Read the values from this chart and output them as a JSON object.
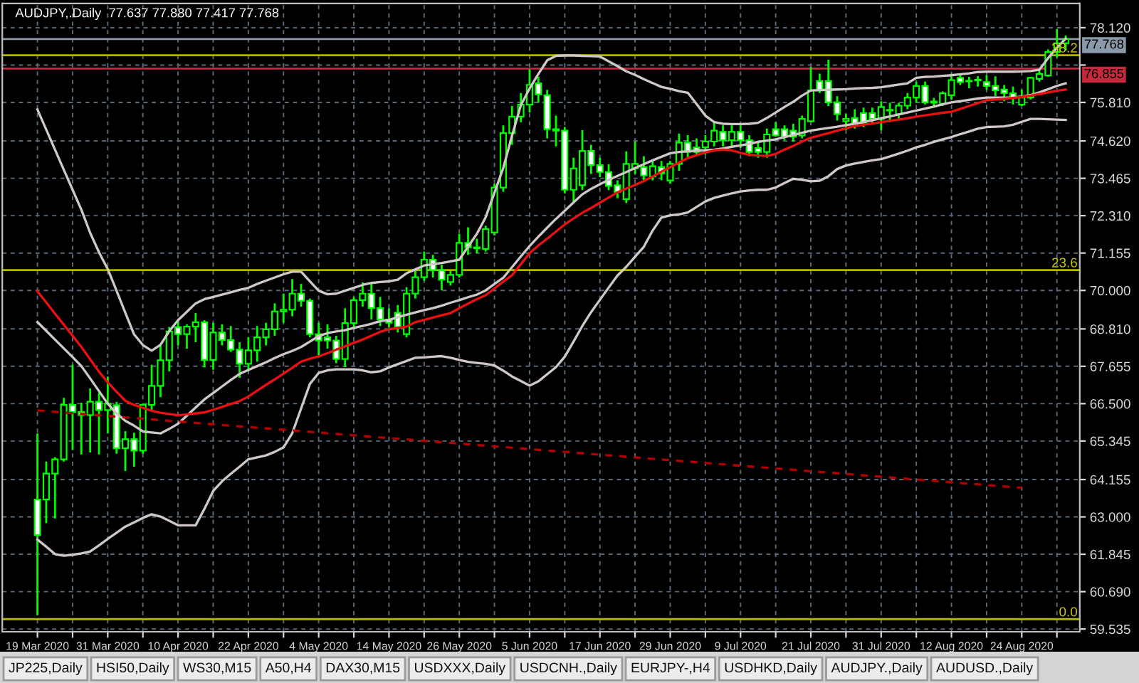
{
  "chart_data": {
    "type": "candlestick",
    "title": "AUDJPY,.Daily  77.637 77.880 77.417 77.768",
    "categories": [
      "19 Mar 2020",
      null,
      null,
      null,
      null,
      null,
      null,
      null,
      "31 Mar 2020",
      null,
      null,
      null,
      null,
      null,
      null,
      null,
      "10 Apr 2020",
      null,
      null,
      null,
      null,
      null,
      null,
      null,
      "22 Apr 2020",
      null,
      null,
      null,
      null,
      null,
      null,
      null,
      "4 May 2020",
      null,
      null,
      null,
      null,
      null,
      null,
      null,
      "14 May 2020",
      null,
      null,
      null,
      null,
      null,
      null,
      null,
      "26 May 2020",
      null,
      null,
      null,
      null,
      null,
      null,
      null,
      "5 Jun 2020",
      null,
      null,
      null,
      null,
      null,
      null,
      null,
      "17 Jun 2020",
      null,
      null,
      null,
      null,
      null,
      null,
      null,
      "29 Jun 2020",
      null,
      null,
      null,
      null,
      null,
      null,
      null,
      "9 Jul 2020",
      null,
      null,
      null,
      null,
      null,
      null,
      null,
      "21 Jul 2020",
      null,
      null,
      null,
      null,
      null,
      null,
      null,
      "31 Jul 2020",
      null,
      null,
      null,
      null,
      null,
      null,
      null,
      "12 Aug 2020",
      null,
      null,
      null,
      null,
      null,
      null,
      null,
      "24 Aug 2020",
      null,
      null,
      null,
      null,
      null
    ],
    "color": "#00ff00",
    "ohlc": [
      [
        63.54,
        65.58,
        59.96,
        62.44
      ],
      [
        63.54,
        64.71,
        62.81,
        64.34
      ],
      [
        64.34,
        64.85,
        62.95,
        64.78
      ],
      [
        64.78,
        66.68,
        64.71,
        66.46
      ],
      [
        66.46,
        67.7,
        65.07,
        66.24
      ],
      [
        66.24,
        66.53,
        64.93,
        66.15
      ],
      [
        66.15,
        66.97,
        64.99,
        66.56
      ],
      [
        66.56,
        66.83,
        64.93,
        66.3
      ],
      [
        66.3,
        67.34,
        65.58,
        66.5
      ],
      [
        66.45,
        66.55,
        64.95,
        65.12
      ],
      [
        65.12,
        65.65,
        64.42,
        65.4
      ],
      [
        65.4,
        65.6,
        64.55,
        65.05
      ],
      [
        65.05,
        66.5,
        64.95,
        66.46
      ],
      [
        66.46,
        67.7,
        66.3,
        67.05
      ],
      [
        67.05,
        68.3,
        66.7,
        67.84
      ],
      [
        67.84,
        68.87,
        67.5,
        68.73
      ],
      [
        68.87,
        69.1,
        68.3,
        68.65
      ],
      [
        68.65,
        68.95,
        68.2,
        68.88
      ],
      [
        68.88,
        69.3,
        68.4,
        69.02
      ],
      [
        69.02,
        69.08,
        67.62,
        67.85
      ],
      [
        67.85,
        69.0,
        67.55,
        68.7
      ],
      [
        68.7,
        68.95,
        68.3,
        68.47
      ],
      [
        68.47,
        68.9,
        68.1,
        68.17
      ],
      [
        68.17,
        68.4,
        67.3,
        67.73
      ],
      [
        67.73,
        68.55,
        67.5,
        68.15
      ],
      [
        68.15,
        68.9,
        67.8,
        68.55
      ],
      [
        68.55,
        69.0,
        68.3,
        68.8
      ],
      [
        68.8,
        69.6,
        68.6,
        69.35
      ],
      [
        69.35,
        69.9,
        69.0,
        69.4
      ],
      [
        69.4,
        70.35,
        69.2,
        69.9
      ],
      [
        69.9,
        70.2,
        69.5,
        69.68
      ],
      [
        69.68,
        69.75,
        68.55,
        68.65
      ],
      [
        68.65,
        69.0,
        68.0,
        68.45
      ],
      [
        68.55,
        68.95,
        68.2,
        68.45
      ],
      [
        68.45,
        68.6,
        67.75,
        67.88
      ],
      [
        67.88,
        69.45,
        67.63,
        68.99
      ],
      [
        68.99,
        69.8,
        68.8,
        69.7
      ],
      [
        69.7,
        70.25,
        69.5,
        69.9
      ],
      [
        69.9,
        70.25,
        69.1,
        69.45
      ],
      [
        69.45,
        69.8,
        68.9,
        69.1
      ],
      [
        69.1,
        69.45,
        68.85,
        69.0
      ],
      [
        69.31,
        69.55,
        68.7,
        68.87
      ],
      [
        68.65,
        70.1,
        68.55,
        69.9
      ],
      [
        69.9,
        70.65,
        69.75,
        70.41
      ],
      [
        70.41,
        71.2,
        70.3,
        70.95
      ],
      [
        70.95,
        71.1,
        70.4,
        70.63
      ],
      [
        70.63,
        70.8,
        70.0,
        70.33
      ],
      [
        70.26,
        70.6,
        70.15,
        70.48
      ],
      [
        70.48,
        71.75,
        70.4,
        71.47
      ],
      [
        71.47,
        71.95,
        71.1,
        71.33
      ],
      [
        71.33,
        71.6,
        71.15,
        71.3
      ],
      [
        71.28,
        72.0,
        71.2,
        71.9
      ],
      [
        71.79,
        73.3,
        71.7,
        73.18
      ],
      [
        73.18,
        75.1,
        73.05,
        74.86
      ],
      [
        74.86,
        75.7,
        74.5,
        75.37
      ],
      [
        75.37,
        76.1,
        75.2,
        75.74
      ],
      [
        75.74,
        76.83,
        75.5,
        76.35
      ],
      [
        76.4,
        76.6,
        75.8,
        76.06
      ],
      [
        76.03,
        76.2,
        74.7,
        74.98
      ],
      [
        74.98,
        75.4,
        74.45,
        74.94
      ],
      [
        74.94,
        75.05,
        73.0,
        73.11
      ],
      [
        73.11,
        74.1,
        72.75,
        73.77
      ],
      [
        73.25,
        74.95,
        73.1,
        74.31
      ],
      [
        74.31,
        74.5,
        73.6,
        73.87
      ],
      [
        73.87,
        74.1,
        73.5,
        73.66
      ],
      [
        73.66,
        73.9,
        73.1,
        73.23
      ],
      [
        73.25,
        73.4,
        72.85,
        73.04
      ],
      [
        72.82,
        74.3,
        72.7,
        73.91
      ],
      [
        73.77,
        74.6,
        73.6,
        73.91
      ],
      [
        73.81,
        74.15,
        73.4,
        73.55
      ],
      [
        73.52,
        74.05,
        73.4,
        73.84
      ],
      [
        73.81,
        74.0,
        73.4,
        73.62
      ],
      [
        73.4,
        74.0,
        73.3,
        73.91
      ],
      [
        73.91,
        74.85,
        73.7,
        74.57
      ],
      [
        74.57,
        74.8,
        74.1,
        74.28
      ],
      [
        74.42,
        74.7,
        74.2,
        74.28
      ],
      [
        74.42,
        74.8,
        74.2,
        74.6
      ],
      [
        74.6,
        75.2,
        74.45,
        74.94
      ],
      [
        74.9,
        75.1,
        74.45,
        74.64
      ],
      [
        74.64,
        75.1,
        74.4,
        74.9
      ],
      [
        74.9,
        75.1,
        74.4,
        74.64
      ],
      [
        74.64,
        74.8,
        74.15,
        74.28
      ],
      [
        74.4,
        74.6,
        74.1,
        74.28
      ],
      [
        74.28,
        75.0,
        74.1,
        74.82
      ],
      [
        74.98,
        75.2,
        74.75,
        74.79
      ],
      [
        74.98,
        75.1,
        74.65,
        74.75
      ],
      [
        74.94,
        75.15,
        74.6,
        74.75
      ],
      [
        74.79,
        75.4,
        74.7,
        75.3
      ],
      [
        75.23,
        76.91,
        75.2,
        76.18
      ],
      [
        76.47,
        76.7,
        76.1,
        76.18
      ],
      [
        76.47,
        77.13,
        75.7,
        75.81
      ],
      [
        75.81,
        76.0,
        75.25,
        75.45
      ],
      [
        75.23,
        75.45,
        74.95,
        75.3
      ],
      [
        75.33,
        75.6,
        75.0,
        75.15
      ],
      [
        75.48,
        75.65,
        75.05,
        75.18
      ],
      [
        75.48,
        75.65,
        75.15,
        75.3
      ],
      [
        75.3,
        75.85,
        74.95,
        75.67
      ],
      [
        75.56,
        75.8,
        75.2,
        75.56
      ],
      [
        75.45,
        75.8,
        75.3,
        75.71
      ],
      [
        75.71,
        76.1,
        75.6,
        75.96
      ],
      [
        75.96,
        76.45,
        75.8,
        76.32
      ],
      [
        76.32,
        76.45,
        75.75,
        75.81
      ],
      [
        75.8,
        75.95,
        75.65,
        75.84
      ],
      [
        75.77,
        76.15,
        75.7,
        76.09
      ],
      [
        76.03,
        76.7,
        75.9,
        76.5
      ],
      [
        76.57,
        76.7,
        76.35,
        76.44
      ],
      [
        76.47,
        76.6,
        76.25,
        76.46
      ],
      [
        76.5,
        76.62,
        76.3,
        76.49
      ],
      [
        76.44,
        76.65,
        76.2,
        76.32
      ],
      [
        76.32,
        76.62,
        76.0,
        76.18
      ],
      [
        76.21,
        76.35,
        75.85,
        76.1
      ],
      [
        76.09,
        76.3,
        75.75,
        75.96
      ],
      [
        75.74,
        76.2,
        75.7,
        75.96
      ],
      [
        75.96,
        76.6,
        75.9,
        76.57
      ],
      [
        76.54,
        76.8,
        76.45,
        76.69
      ],
      [
        76.64,
        77.45,
        76.6,
        77.37
      ],
      [
        77.37,
        78.08,
        77.2,
        77.64
      ],
      [
        77.637,
        77.88,
        77.417,
        77.768
      ]
    ],
    "series": [
      {
        "type": "line",
        "color": "#d0c8c8",
        "line_style": "solid",
        "values": [
          75.59,
          74.97,
          74.35,
          73.73,
          73.11,
          72.49,
          71.78,
          71.18,
          70.66,
          69.99,
          69.31,
          68.64,
          68.31,
          68.14,
          68.32,
          68.74,
          69.08,
          69.34,
          69.6,
          69.73,
          69.8,
          69.87,
          69.94,
          70.02,
          70.08,
          70.2,
          70.3,
          70.4,
          70.5,
          70.58,
          70.58,
          70.28,
          69.99,
          69.88,
          69.9,
          69.99,
          70.08,
          70.17,
          70.23,
          70.26,
          70.28,
          70.33,
          70.53,
          70.65,
          70.77,
          70.81,
          70.85,
          70.9,
          70.95,
          71.35,
          71.75,
          72.26,
          73.02,
          73.78,
          74.78,
          75.72,
          76.24,
          76.69,
          77.11,
          77.25,
          77.26,
          77.26,
          77.25,
          77.24,
          77.23,
          77.08,
          76.93,
          76.77,
          76.66,
          76.53,
          76.41,
          76.29,
          76.23,
          76.16,
          76.11,
          75.76,
          75.4,
          75.2,
          75.15,
          75.14,
          75.14,
          75.15,
          75.18,
          75.33,
          75.5,
          75.67,
          75.83,
          76.02,
          76.18,
          76.19,
          76.2,
          76.21,
          76.22,
          76.24,
          76.25,
          76.26,
          76.28,
          76.32,
          76.36,
          76.4,
          76.57,
          76.6,
          76.61,
          76.63,
          76.65,
          76.68,
          76.71,
          76.75,
          76.76,
          76.76,
          76.76,
          76.76,
          76.77,
          76.78,
          76.82,
          77.18,
          77.5,
          77.78
        ]
      },
      {
        "type": "line",
        "color": "#d0c8c8",
        "line_style": "solid",
        "values": [
          69.02,
          68.75,
          68.48,
          68.21,
          67.94,
          67.66,
          67.28,
          66.89,
          66.5,
          66.2,
          65.97,
          65.82,
          65.64,
          65.61,
          65.58,
          65.72,
          65.88,
          66.13,
          66.38,
          66.63,
          66.83,
          67.03,
          67.23,
          67.42,
          67.54,
          67.66,
          67.78,
          67.91,
          68.03,
          68.13,
          68.25,
          68.42,
          68.59,
          68.68,
          68.73,
          68.77,
          68.84,
          68.9,
          68.97,
          69.05,
          69.09,
          69.17,
          69.25,
          69.32,
          69.39,
          69.45,
          69.53,
          69.62,
          69.7,
          69.79,
          69.87,
          70.0,
          70.2,
          70.39,
          70.72,
          71.05,
          71.37,
          71.66,
          71.94,
          72.21,
          72.46,
          72.72,
          72.97,
          73.14,
          73.28,
          73.42,
          73.54,
          73.66,
          73.78,
          73.9,
          74.02,
          74.13,
          74.24,
          74.28,
          74.3,
          74.32,
          74.33,
          74.35,
          74.39,
          74.44,
          74.48,
          74.53,
          74.59,
          74.63,
          74.67,
          74.74,
          74.8,
          74.87,
          74.94,
          74.98,
          75.02,
          75.06,
          75.11,
          75.15,
          75.2,
          75.26,
          75.32,
          75.38,
          75.44,
          75.5,
          75.56,
          75.62,
          75.68,
          75.75,
          75.81,
          75.85,
          75.89,
          75.93,
          75.96,
          75.96,
          75.96,
          75.96,
          75.99,
          76.04,
          76.12,
          76.22,
          76.32,
          76.4
        ]
      },
      {
        "type": "line",
        "color": "#d0c8c8",
        "line_style": "solid",
        "values": [
          62.3,
          62.08,
          61.85,
          61.8,
          61.83,
          61.87,
          61.93,
          62.12,
          62.32,
          62.51,
          62.7,
          62.83,
          62.97,
          63.08,
          63.01,
          62.88,
          62.74,
          62.74,
          62.74,
          63.25,
          63.8,
          64.1,
          64.33,
          64.55,
          64.78,
          64.84,
          64.9,
          65.01,
          65.15,
          65.59,
          66.35,
          67.11,
          67.45,
          67.53,
          67.56,
          67.56,
          67.56,
          67.53,
          67.47,
          67.5,
          67.62,
          67.72,
          67.82,
          67.92,
          67.93,
          67.95,
          67.97,
          67.92,
          67.85,
          67.79,
          67.76,
          67.73,
          67.68,
          67.52,
          67.34,
          67.2,
          67.06,
          67.19,
          67.41,
          67.63,
          67.95,
          68.42,
          68.9,
          69.33,
          69.71,
          70.09,
          70.46,
          70.73,
          71.04,
          71.35,
          71.85,
          72.25,
          72.32,
          72.35,
          72.41,
          72.58,
          72.75,
          72.86,
          72.93,
          73.0,
          73.06,
          73.09,
          73.11,
          73.11,
          73.18,
          73.32,
          73.45,
          73.42,
          73.37,
          73.39,
          73.53,
          73.75,
          73.86,
          73.92,
          73.97,
          74.02,
          74.06,
          74.14,
          74.23,
          74.32,
          74.42,
          74.5,
          74.59,
          74.67,
          74.74,
          74.83,
          74.91,
          75.0,
          75.05,
          75.06,
          75.07,
          75.12,
          75.21,
          75.3,
          75.3,
          75.29,
          75.28,
          75.27
        ]
      },
      {
        "type": "line",
        "color": "#e81010",
        "line_style": "solid",
        "values": [
          69.97,
          69.63,
          69.28,
          68.94,
          68.6,
          68.25,
          67.87,
          67.49,
          67.16,
          66.87,
          66.59,
          66.46,
          66.37,
          66.28,
          66.22,
          66.18,
          66.14,
          66.17,
          66.2,
          66.23,
          66.31,
          66.4,
          66.49,
          66.58,
          66.72,
          66.9,
          67.08,
          67.25,
          67.43,
          67.61,
          67.8,
          67.89,
          67.96,
          68.06,
          68.17,
          68.27,
          68.38,
          68.48,
          68.6,
          68.72,
          68.8,
          68.84,
          68.88,
          69.02,
          69.09,
          69.16,
          69.23,
          69.3,
          69.45,
          69.59,
          69.73,
          69.85,
          70.06,
          70.27,
          70.47,
          70.81,
          71.15,
          71.39,
          71.6,
          71.82,
          72.04,
          72.22,
          72.4,
          72.55,
          72.71,
          72.87,
          73.03,
          73.15,
          73.26,
          73.38,
          73.52,
          73.67,
          73.81,
          73.95,
          74.09,
          74.18,
          74.26,
          74.33,
          74.35,
          74.33,
          74.25,
          74.19,
          74.17,
          74.16,
          74.22,
          74.35,
          74.47,
          74.6,
          74.72,
          74.79,
          74.86,
          74.94,
          75.01,
          75.08,
          75.12,
          75.16,
          75.2,
          75.24,
          75.28,
          75.32,
          75.37,
          75.41,
          75.45,
          75.49,
          75.52,
          75.61,
          75.7,
          75.79,
          75.88,
          75.9,
          75.92,
          75.95,
          75.98,
          76.02,
          76.07,
          76.12,
          76.17,
          76.21
        ]
      },
      {
        "type": "line",
        "color": "#b00000",
        "line_style": "dashed",
        "x": [
          "19 Mar 2020",
          "24 Aug 2020"
        ],
        "values": [
          66.29,
          63.9
        ]
      }
    ],
    "ylim": [
      59.45,
      78.87
    ],
    "yticks": [
      {
        "value": 78.12,
        "label": "78.120"
      },
      {
        "value": 76.965,
        "label": null
      },
      {
        "value": 75.81,
        "label": "75.810"
      },
      {
        "value": 74.62,
        "label": "74.620"
      },
      73.465,
      {
        "value": 72.31,
        "label": "72.310"
      },
      71.155,
      {
        "value": 70,
        "label": "70.000"
      },
      {
        "value": 68.81,
        "label": "68.810"
      },
      67.655,
      {
        "value": 66.5,
        "label": "66.500"
      },
      65.345,
      64.155,
      {
        "value": 63,
        "label": "63.000"
      },
      61.845,
      {
        "value": 60.69,
        "label": "60.690"
      },
      59.535
    ],
    "grid": true,
    "ref_lines": [
      {
        "axis": "y",
        "value": 77.768,
        "label": "77.768",
        "color": "#8a9aaa"
      },
      {
        "axis": "y",
        "value": 76.855,
        "label": "76.855",
        "color": "#c8283c"
      },
      {
        "axis": "y",
        "value": 77.27,
        "color": "#b4b400"
      },
      {
        "axis": "y",
        "value": 70.63,
        "color": "#b4b400"
      },
      {
        "axis": "y",
        "value": 59.84,
        "color": "#b4b400"
      }
    ],
    "annotations": [
      {
        "text": "38.2",
        "y": 77.27
      },
      {
        "text": "23.6",
        "y": 70.63
      },
      {
        "text": "0.0",
        "y": 59.84
      },
      "JP225,Daily",
      "HSI50,Daily",
      "WS30,M15",
      "A50,H4",
      "DAX30,M15",
      "USDXXX,Daily",
      "USDCNH.,Daily",
      "EURJPY-,H4",
      "USDHKD,Daily",
      "AUDJPY.,Daily",
      "AUDUSD.,Daily"
    ]
  }
}
